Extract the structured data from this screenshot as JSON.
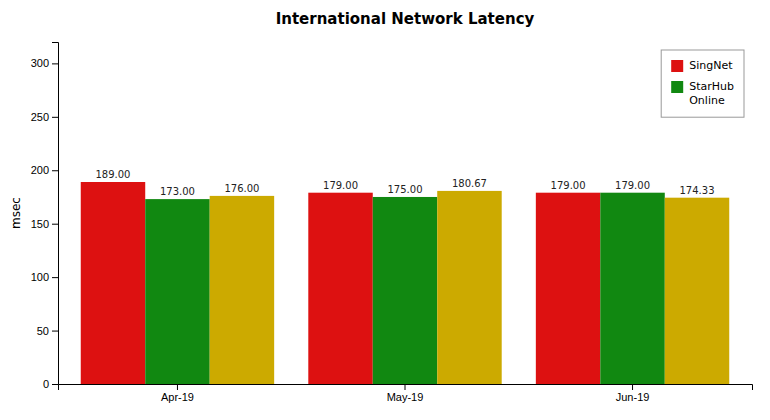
{
  "chart_data": {
    "type": "bar",
    "title": "International Network Latency",
    "ylabel": "msec",
    "categories": [
      "Apr-19",
      "May-19",
      "Jun-19"
    ],
    "series": [
      {
        "name": "SingNet",
        "color": "#dd1111",
        "values": [
          189.0,
          179.0,
          179.0
        ],
        "value_labels": [
          "189.00",
          "179.00",
          "179.00"
        ]
      },
      {
        "name": "StarHub\nOnline",
        "color": "#118811",
        "values": [
          173.0,
          175.0,
          179.0
        ],
        "value_labels": [
          "173.00",
          "175.00",
          "179.00"
        ]
      },
      {
        "color": "#ccaa00",
        "values": [
          176.0,
          180.67,
          174.33
        ],
        "value_labels": [
          "176.00",
          "180.67",
          "174.33"
        ]
      }
    ],
    "ylim": [
      0,
      320
    ],
    "yticks": [
      0,
      50,
      100,
      150,
      200,
      250,
      300
    ],
    "grid": false,
    "legend": "upper right",
    "data_labels": true
  }
}
